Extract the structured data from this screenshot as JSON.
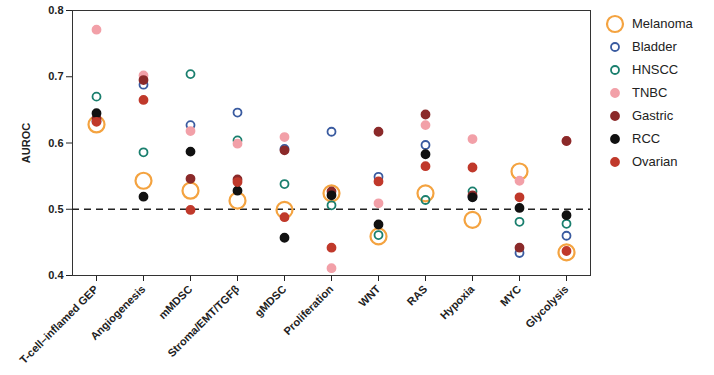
{
  "chart_data": {
    "type": "scatter",
    "y_label": "AUROC",
    "categories": [
      "T-cell–inflamed GEP",
      "Angiogenesis",
      "mMDSC",
      "Stroma/EMT/TGFβ",
      "gMDSC",
      "Proliferation",
      "WNT",
      "RAS",
      "Hypoxia",
      "MYC",
      "Glycolysis"
    ],
    "series": [
      {
        "name": "Melanoma",
        "color": "#f4a340",
        "marker": "open_circle_large",
        "values": [
          0.628,
          0.543,
          0.528,
          0.513,
          0.499,
          0.524,
          0.459,
          0.524,
          0.484,
          0.557,
          0.435
        ]
      },
      {
        "name": "Bladder",
        "color": "#3a5ba0",
        "marker": "open_circle",
        "values": [
          0.633,
          0.688,
          0.627,
          0.646,
          0.591,
          0.617,
          0.549,
          0.597,
          0.519,
          0.434,
          0.46
        ]
      },
      {
        "name": "HNSCC",
        "color": "#1a7f6e",
        "marker": "open_circle",
        "values": [
          0.67,
          0.586,
          0.704,
          0.604,
          0.538,
          0.506,
          0.461,
          0.514,
          0.527,
          0.481,
          0.478
        ]
      },
      {
        "name": "TNBC",
        "color": "#f2a0a8",
        "marker": "filled_circle",
        "values": [
          0.771,
          0.702,
          0.618,
          0.599,
          0.609,
          0.411,
          0.509,
          0.627,
          0.606,
          0.543,
          0.603
        ]
      },
      {
        "name": "Gastric",
        "color": "#8b2a2a",
        "marker": "filled_circle",
        "values": [
          0.637,
          0.695,
          0.546,
          0.545,
          0.589,
          0.527,
          0.617,
          0.643,
          0.521,
          0.442,
          0.603
        ]
      },
      {
        "name": "RCC",
        "color": "#111111",
        "marker": "filled_circle",
        "values": [
          0.645,
          0.519,
          0.587,
          0.528,
          0.457,
          0.521,
          0.477,
          0.583,
          0.518,
          0.502,
          0.491
        ]
      },
      {
        "name": "Ovarian",
        "color": "#c0392b",
        "marker": "filled_circle",
        "values": [
          0.632,
          0.665,
          0.499,
          0.541,
          0.488,
          0.442,
          0.542,
          0.565,
          0.563,
          0.518,
          0.437
        ]
      }
    ],
    "ylim": [
      0.4,
      0.8
    ],
    "yticks": [
      0.4,
      0.5,
      0.6,
      0.7,
      0.8
    ],
    "reference_line": 0.5,
    "legend": "right"
  }
}
